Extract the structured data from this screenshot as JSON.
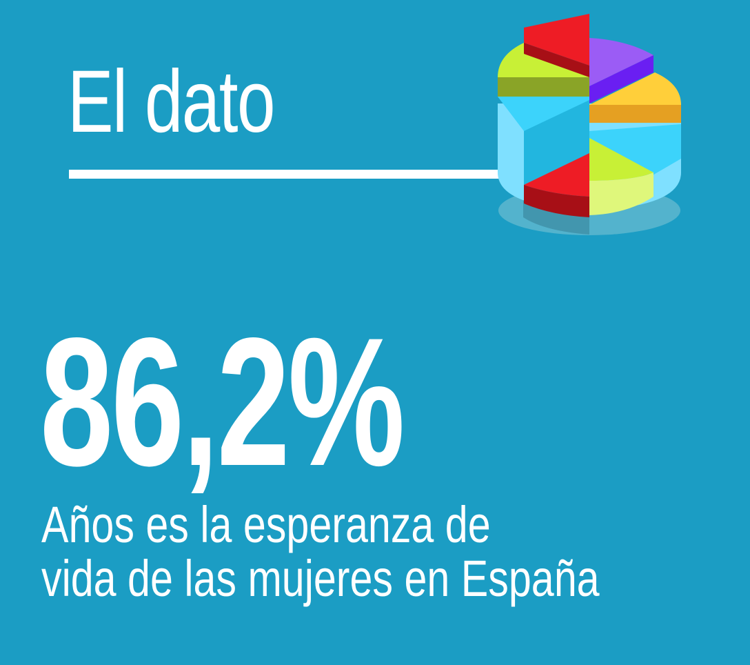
{
  "header": {
    "title": "El dato"
  },
  "stat": {
    "value": "86,2%",
    "description_line1": "Años es la esperanza de",
    "description_line2": "vida de las mujeres en España"
  },
  "colors": {
    "background": "#1b9dc4",
    "text": "#ffffff",
    "pie_red": "#ee1c25",
    "pie_lime": "#c8f036",
    "pie_purple": "#7c3df0",
    "pie_yellow": "#ffcf3a",
    "pie_cyan": "#3cd3fb"
  },
  "icons": {
    "illustration": "pie-chart-icon"
  }
}
